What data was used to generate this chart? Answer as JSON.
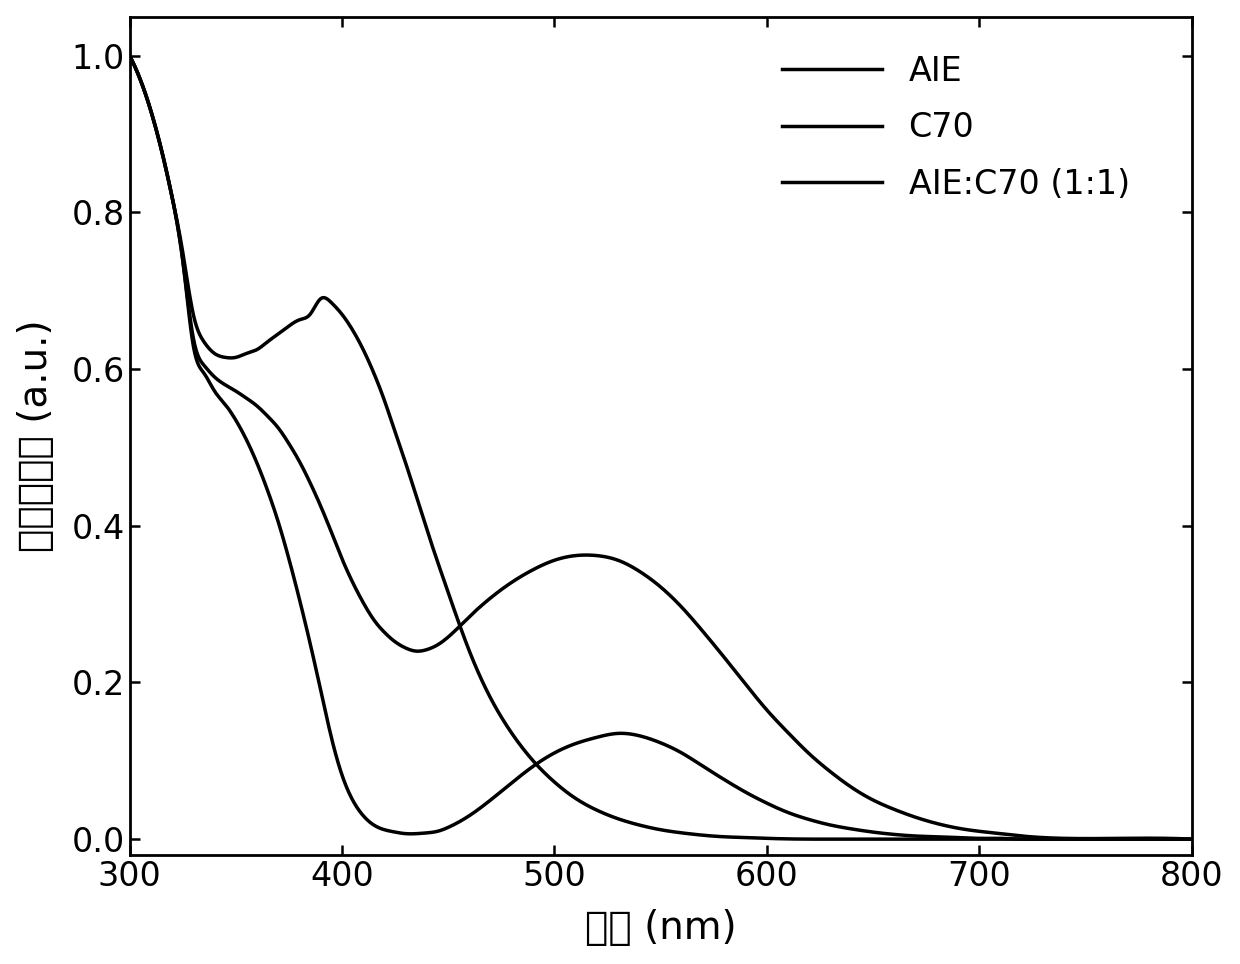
{
  "xlabel": "波长 (nm)",
  "ylabel": "归一化吸收 (a.u.)",
  "xlim": [
    300,
    800
  ],
  "ylim": [
    -0.02,
    1.05
  ],
  "xticks": [
    300,
    400,
    500,
    600,
    700,
    800
  ],
  "yticks": [
    0.0,
    0.2,
    0.4,
    0.6,
    0.8,
    1.0
  ],
  "legend_labels": [
    "AIE",
    "C70",
    "AIE:C70 (1:1)"
  ],
  "line_color": "#000000",
  "linewidth": 2.5,
  "background_color": "#ffffff",
  "AIE_x": [
    300,
    305,
    310,
    315,
    320,
    325,
    330,
    335,
    340,
    345,
    350,
    355,
    360,
    365,
    370,
    375,
    380,
    385,
    390,
    395,
    400,
    405,
    410,
    415,
    420,
    425,
    430,
    440,
    450,
    460,
    470,
    480,
    490,
    500,
    510,
    520,
    530,
    540,
    550,
    560,
    570,
    580,
    590,
    600,
    620,
    640,
    660,
    680,
    700,
    720,
    740,
    800
  ],
  "AIE_y": [
    1.0,
    0.97,
    0.93,
    0.88,
    0.82,
    0.75,
    0.67,
    0.635,
    0.62,
    0.615,
    0.615,
    0.62,
    0.625,
    0.635,
    0.645,
    0.655,
    0.663,
    0.67,
    0.69,
    0.685,
    0.67,
    0.65,
    0.625,
    0.595,
    0.56,
    0.52,
    0.48,
    0.395,
    0.315,
    0.24,
    0.18,
    0.135,
    0.1,
    0.073,
    0.052,
    0.037,
    0.026,
    0.018,
    0.012,
    0.008,
    0.005,
    0.003,
    0.002,
    0.001,
    0.0,
    0.0,
    0.0,
    0.0,
    0.0,
    0.0,
    0.0,
    0.0
  ],
  "C70_x": [
    300,
    305,
    310,
    315,
    320,
    325,
    330,
    335,
    340,
    345,
    350,
    355,
    360,
    365,
    370,
    375,
    380,
    385,
    390,
    395,
    400,
    405,
    410,
    415,
    420,
    425,
    430,
    435,
    440,
    445,
    450,
    460,
    470,
    480,
    490,
    500,
    510,
    520,
    530,
    540,
    550,
    560,
    570,
    580,
    590,
    600,
    610,
    620,
    630,
    640,
    650,
    660,
    670,
    680,
    690,
    700,
    710,
    720,
    730,
    740,
    800
  ],
  "C70_y": [
    1.0,
    0.97,
    0.93,
    0.88,
    0.82,
    0.74,
    0.64,
    0.605,
    0.59,
    0.58,
    0.572,
    0.563,
    0.553,
    0.54,
    0.525,
    0.505,
    0.482,
    0.455,
    0.425,
    0.392,
    0.358,
    0.328,
    0.302,
    0.28,
    0.264,
    0.252,
    0.244,
    0.24,
    0.242,
    0.248,
    0.258,
    0.284,
    0.308,
    0.328,
    0.344,
    0.356,
    0.362,
    0.362,
    0.356,
    0.342,
    0.322,
    0.296,
    0.265,
    0.232,
    0.198,
    0.165,
    0.136,
    0.109,
    0.086,
    0.066,
    0.05,
    0.038,
    0.028,
    0.02,
    0.014,
    0.01,
    0.007,
    0.004,
    0.002,
    0.001,
    0.0
  ],
  "blend_x": [
    300,
    305,
    310,
    315,
    320,
    325,
    330,
    335,
    340,
    345,
    350,
    355,
    360,
    365,
    370,
    375,
    380,
    385,
    390,
    395,
    400,
    405,
    410,
    415,
    420,
    425,
    430,
    435,
    440,
    445,
    450,
    460,
    470,
    480,
    490,
    500,
    510,
    520,
    530,
    540,
    550,
    560,
    570,
    580,
    590,
    600,
    610,
    620,
    630,
    640,
    650,
    660,
    670,
    680,
    690,
    700,
    710,
    720,
    730,
    740,
    800
  ],
  "blend_y": [
    1.0,
    0.97,
    0.93,
    0.88,
    0.82,
    0.74,
    0.63,
    0.595,
    0.572,
    0.555,
    0.535,
    0.51,
    0.48,
    0.445,
    0.405,
    0.358,
    0.306,
    0.25,
    0.19,
    0.13,
    0.082,
    0.05,
    0.03,
    0.018,
    0.012,
    0.009,
    0.007,
    0.007,
    0.008,
    0.01,
    0.015,
    0.03,
    0.05,
    0.072,
    0.093,
    0.11,
    0.122,
    0.13,
    0.135,
    0.132,
    0.123,
    0.11,
    0.093,
    0.076,
    0.06,
    0.046,
    0.034,
    0.025,
    0.018,
    0.013,
    0.009,
    0.006,
    0.004,
    0.003,
    0.002,
    0.001,
    0.001,
    0.0,
    0.0,
    0.0,
    0.0
  ]
}
